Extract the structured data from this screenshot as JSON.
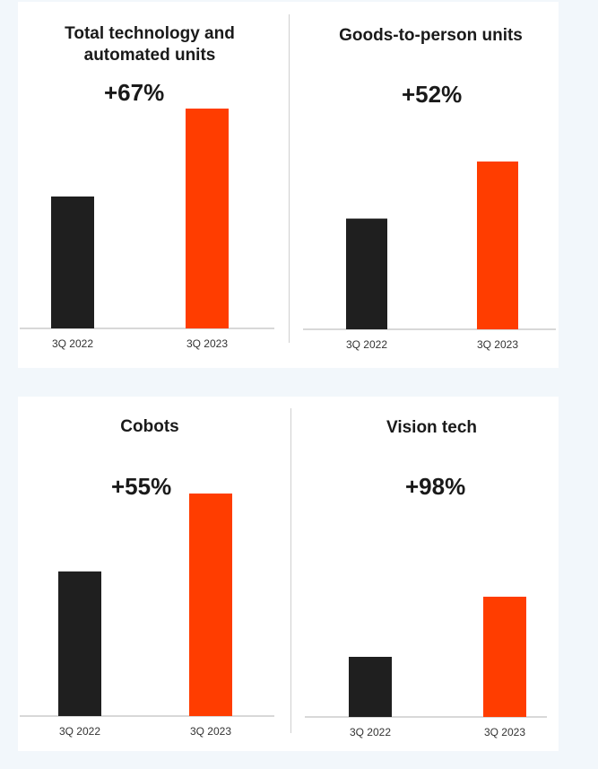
{
  "colors": {
    "bar_2022": "#1f1f1f",
    "bar_2023": "#ff3d00",
    "axis": "#b0b0b0",
    "background": "#f2f7fb"
  },
  "chart_data": [
    {
      "type": "bar",
      "title": "Total technology and automated units",
      "change_label": "+67%",
      "categories": [
        "3Q 2022",
        "3Q 2023"
      ],
      "values": [
        60,
        100
      ]
    },
    {
      "type": "bar",
      "title": "Goods-to-person units",
      "change_label": "+52%",
      "categories": [
        "3Q 2022",
        "3Q 2023"
      ],
      "values": [
        66,
        100
      ]
    },
    {
      "type": "bar",
      "title": "Cobots",
      "change_label": "+55%",
      "categories": [
        "3Q 2022",
        "3Q 2023"
      ],
      "values": [
        65,
        100
      ]
    },
    {
      "type": "bar",
      "title": "Vision tech",
      "change_label": "+98%",
      "categories": [
        "3Q 2022",
        "3Q 2023"
      ],
      "values": [
        50,
        100
      ]
    }
  ]
}
